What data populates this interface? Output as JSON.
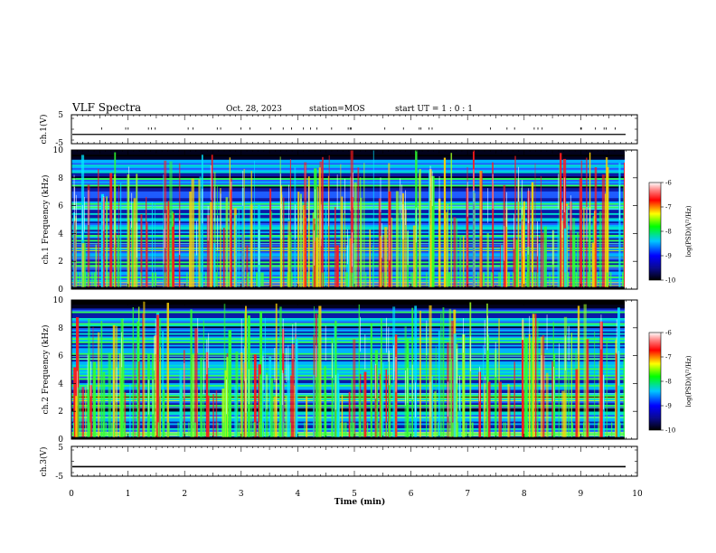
{
  "header": {
    "title": "VLF Spectra",
    "date": "Oct. 28, 2023",
    "station": "station=MOS",
    "start": "start  UT =   1 : 0  : 1"
  },
  "chart_data": [
    {
      "type": "line",
      "panel": "ch1-waveform",
      "ylabel": "ch.1(V)",
      "ylim": [
        -5,
        5
      ],
      "yticks": [
        "5",
        "-5"
      ],
      "xlim": [
        0,
        10
      ],
      "series": [
        {
          "values": [
            -1.8,
            -1.8
          ]
        }
      ]
    },
    {
      "type": "heatmap",
      "panel": "ch1-spectrogram",
      "ylabel": "ch.1  Frequency (kHz)",
      "ylim": [
        0,
        10
      ],
      "yticks": [
        "0",
        "2",
        "4",
        "6",
        "8",
        "10"
      ],
      "xlim": [
        0,
        9.8
      ],
      "colorbar": {
        "label": "log(PSD)(V²/Hz)",
        "range": [
          -10,
          -6
        ],
        "ticks": [
          "-6",
          "-7",
          "-8",
          "-9",
          "-10"
        ]
      }
    },
    {
      "type": "heatmap",
      "panel": "ch2-spectrogram",
      "ylabel": "ch.2  Frequency (kHz)",
      "ylim": [
        0,
        10
      ],
      "yticks": [
        "0",
        "2",
        "4",
        "6",
        "8",
        "10"
      ],
      "xlim": [
        0,
        9.8
      ],
      "colorbar": {
        "label": "log(PSD)(V²/Hz)",
        "range": [
          -10,
          -6
        ],
        "ticks": [
          "-6",
          "-7",
          "-8",
          "-9",
          "-10"
        ]
      }
    },
    {
      "type": "line",
      "panel": "ch3-waveform",
      "ylabel": "ch.3(V)",
      "ylim": [
        -5,
        5
      ],
      "yticks": [
        "5",
        "-5"
      ],
      "xlim": [
        0,
        10
      ],
      "series": [
        {
          "values": [
            -1.8,
            -1.8
          ]
        }
      ]
    }
  ],
  "xaxis": {
    "label": "Time  (min)",
    "range": [
      0,
      10
    ],
    "ticks": [
      "0",
      "1",
      "2",
      "3",
      "4",
      "5",
      "6",
      "7",
      "8",
      "9",
      "10"
    ]
  }
}
